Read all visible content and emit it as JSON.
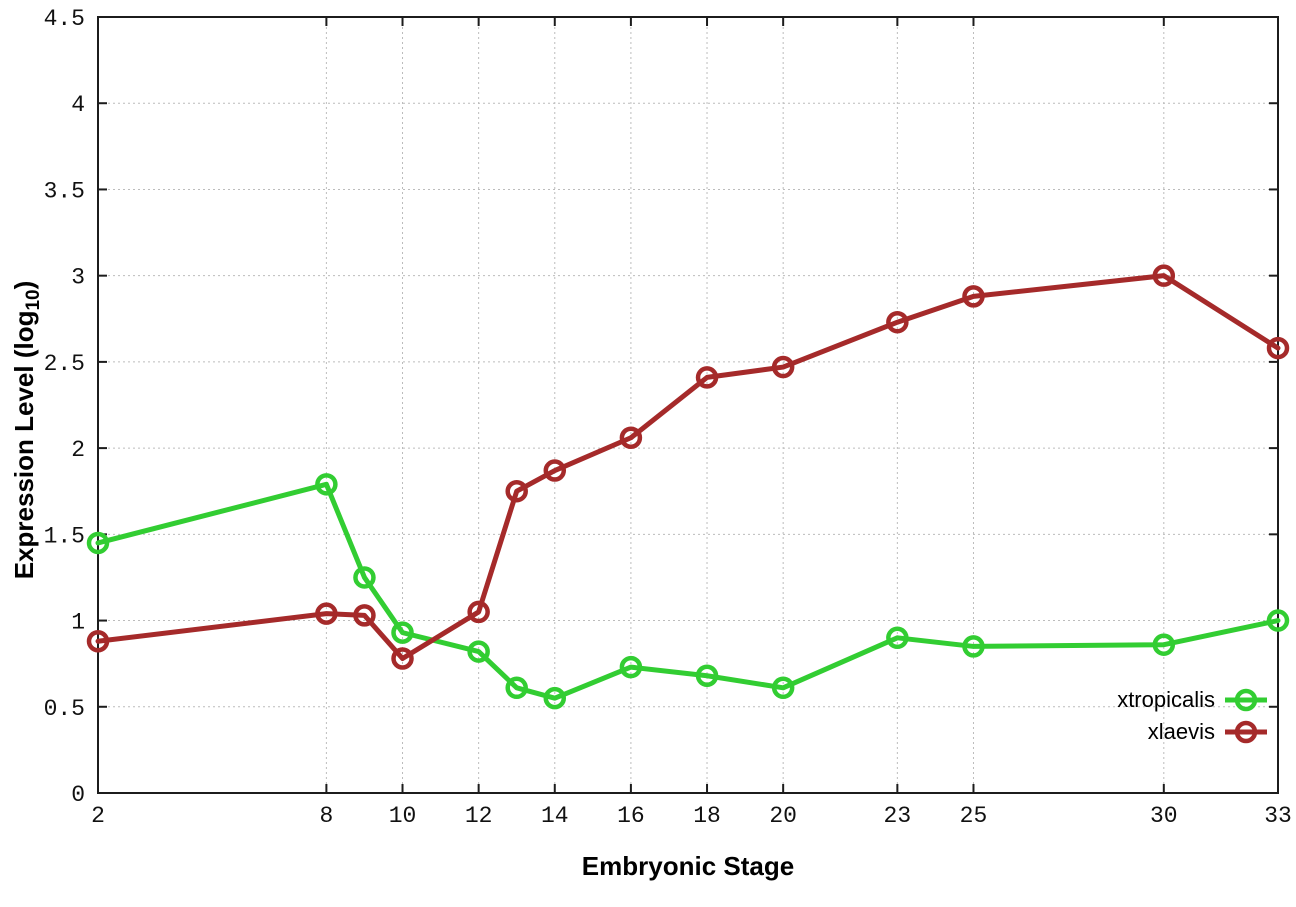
{
  "figure": {
    "background": "#ffffff",
    "border_color": "#1c1c1c",
    "grid_color": "#bcbcbc",
    "tick_label_color": "#111111"
  },
  "labels": {
    "xlabel": "Embryonic Stage",
    "ylabel_main": "Expression Level (log",
    "ylabel_sub": "10",
    "ylabel_close": ")"
  },
  "legend": {
    "position": "bottom-right",
    "entries": [
      {
        "label": "xtropicalis",
        "color": "#32cd32"
      },
      {
        "label": "xlaevis",
        "color": "#a52a2a"
      }
    ]
  },
  "chart_data": {
    "type": "line",
    "title": "",
    "xlabel": "Embryonic Stage",
    "ylabel": "Expression Level (log10)",
    "x": [
      2,
      8,
      9,
      10,
      12,
      13,
      14,
      16,
      18,
      20,
      23,
      25,
      30,
      33
    ],
    "series": [
      {
        "name": "xtropicalis",
        "color": "#32cd32",
        "values": [
          1.45,
          1.79,
          1.25,
          0.93,
          0.82,
          0.61,
          0.55,
          0.73,
          0.68,
          0.61,
          0.9,
          0.85,
          0.86,
          1.0
        ]
      },
      {
        "name": "xlaevis",
        "color": "#a52a2a",
        "values": [
          0.88,
          1.04,
          1.03,
          0.78,
          1.05,
          1.75,
          1.87,
          2.06,
          2.41,
          2.47,
          2.73,
          2.88,
          3.0,
          2.58
        ]
      }
    ],
    "xticks": [
      2,
      8,
      10,
      12,
      14,
      16,
      18,
      20,
      23,
      25,
      30,
      33
    ],
    "yticks": [
      0,
      0.5,
      1,
      1.5,
      2,
      2.5,
      3,
      3.5,
      4,
      4.5
    ],
    "xlim": [
      2,
      33
    ],
    "ylim": [
      0,
      4.5
    ],
    "grid": true,
    "marker": "open-circle",
    "legend_position": "bottom-right"
  }
}
